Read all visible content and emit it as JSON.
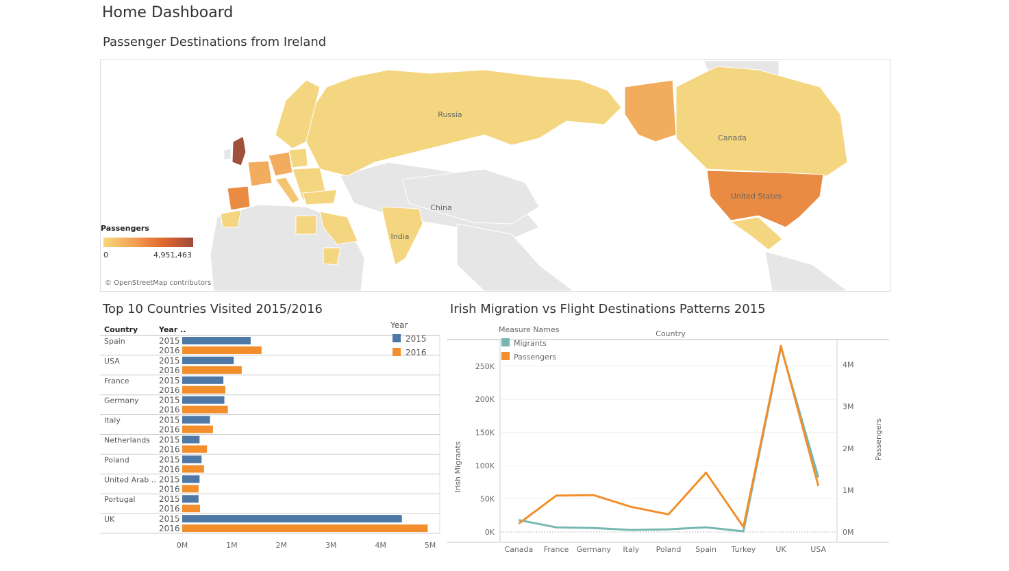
{
  "dashboard": {
    "title": "Home Dashboard"
  },
  "map": {
    "title": "Passenger Destinations from Ireland",
    "legend_title": "Passengers",
    "legend_min": "0",
    "legend_max": "4,951,463",
    "legend_colors": [
      "#f7d77c",
      "#f1a156",
      "#e0682c",
      "#9e4a3a"
    ],
    "labels": {
      "russia": "Russia",
      "china": "China",
      "india": "India",
      "canada": "Canada",
      "united_states": "United States"
    },
    "attribution": "© OpenStreetMap contributors",
    "colors": {
      "land_neutral": "#e6e6e6",
      "low": "#f4d680",
      "mid": "#f1ad5d",
      "high": "#e98b42",
      "uk": "#a0513b"
    }
  },
  "bar_chart_title": "Top 10 Countries Visited 2015/2016",
  "line_chart_title": "Irish Migration vs Flight Destinations Patterns 2015",
  "chart_data": [
    {
      "type": "bar",
      "title": "Top 10 Countries Visited 2015/2016",
      "col_headers": [
        "Country",
        "Year .."
      ],
      "categories": [
        "Spain",
        "USA",
        "France",
        "Germany",
        "Italy",
        "Netherlands",
        "Poland",
        "United Arab ..",
        "Portugal",
        "UK"
      ],
      "years": [
        "2015",
        "2016"
      ],
      "series": [
        {
          "name": "2015",
          "color": "#4e79a7",
          "values": [
            1.38,
            1.04,
            0.83,
            0.85,
            0.56,
            0.35,
            0.39,
            0.35,
            0.33,
            4.43
          ]
        },
        {
          "name": "2016",
          "color": "#f28e2b",
          "values": [
            1.6,
            1.2,
            0.87,
            0.92,
            0.62,
            0.5,
            0.44,
            0.33,
            0.36,
            4.95
          ]
        }
      ],
      "unit": "M",
      "xlim": [
        0,
        5
      ],
      "xticks": [
        "0M",
        "1M",
        "2M",
        "3M",
        "4M",
        "5M"
      ],
      "legend_title": "Year",
      "legend_position": "top-right"
    },
    {
      "type": "line",
      "title": "Irish Migration vs Flight Destinations Patterns 2015",
      "xlabel": "Country",
      "legend_title": "Measure Names",
      "categories": [
        "Canada",
        "France",
        "Germany",
        "Italy",
        "Poland",
        "Spain",
        "Turkey",
        "UK",
        "USA"
      ],
      "series": [
        {
          "name": "Migrants",
          "axis": "left",
          "color": "#76b7b2",
          "values": [
            18000,
            7000,
            6000,
            3000,
            4000,
            7000,
            1000,
            279000,
            82000
          ]
        },
        {
          "name": "Passengers",
          "axis": "right",
          "color": "#f28e2b",
          "values": [
            0.2,
            0.87,
            0.88,
            0.6,
            0.42,
            1.42,
            0.12,
            4.45,
            1.1
          ]
        }
      ],
      "ylabel_left": "Irish Migrants",
      "ylabel_right": "Passengers",
      "ylim_left": [
        0,
        290000
      ],
      "yticks_left": [
        "0K",
        "50K",
        "100K",
        "150K",
        "200K",
        "250K"
      ],
      "ylim_right": [
        0,
        4.6
      ],
      "yticks_right": [
        "0M",
        "1M",
        "2M",
        "3M",
        "4M"
      ]
    }
  ]
}
